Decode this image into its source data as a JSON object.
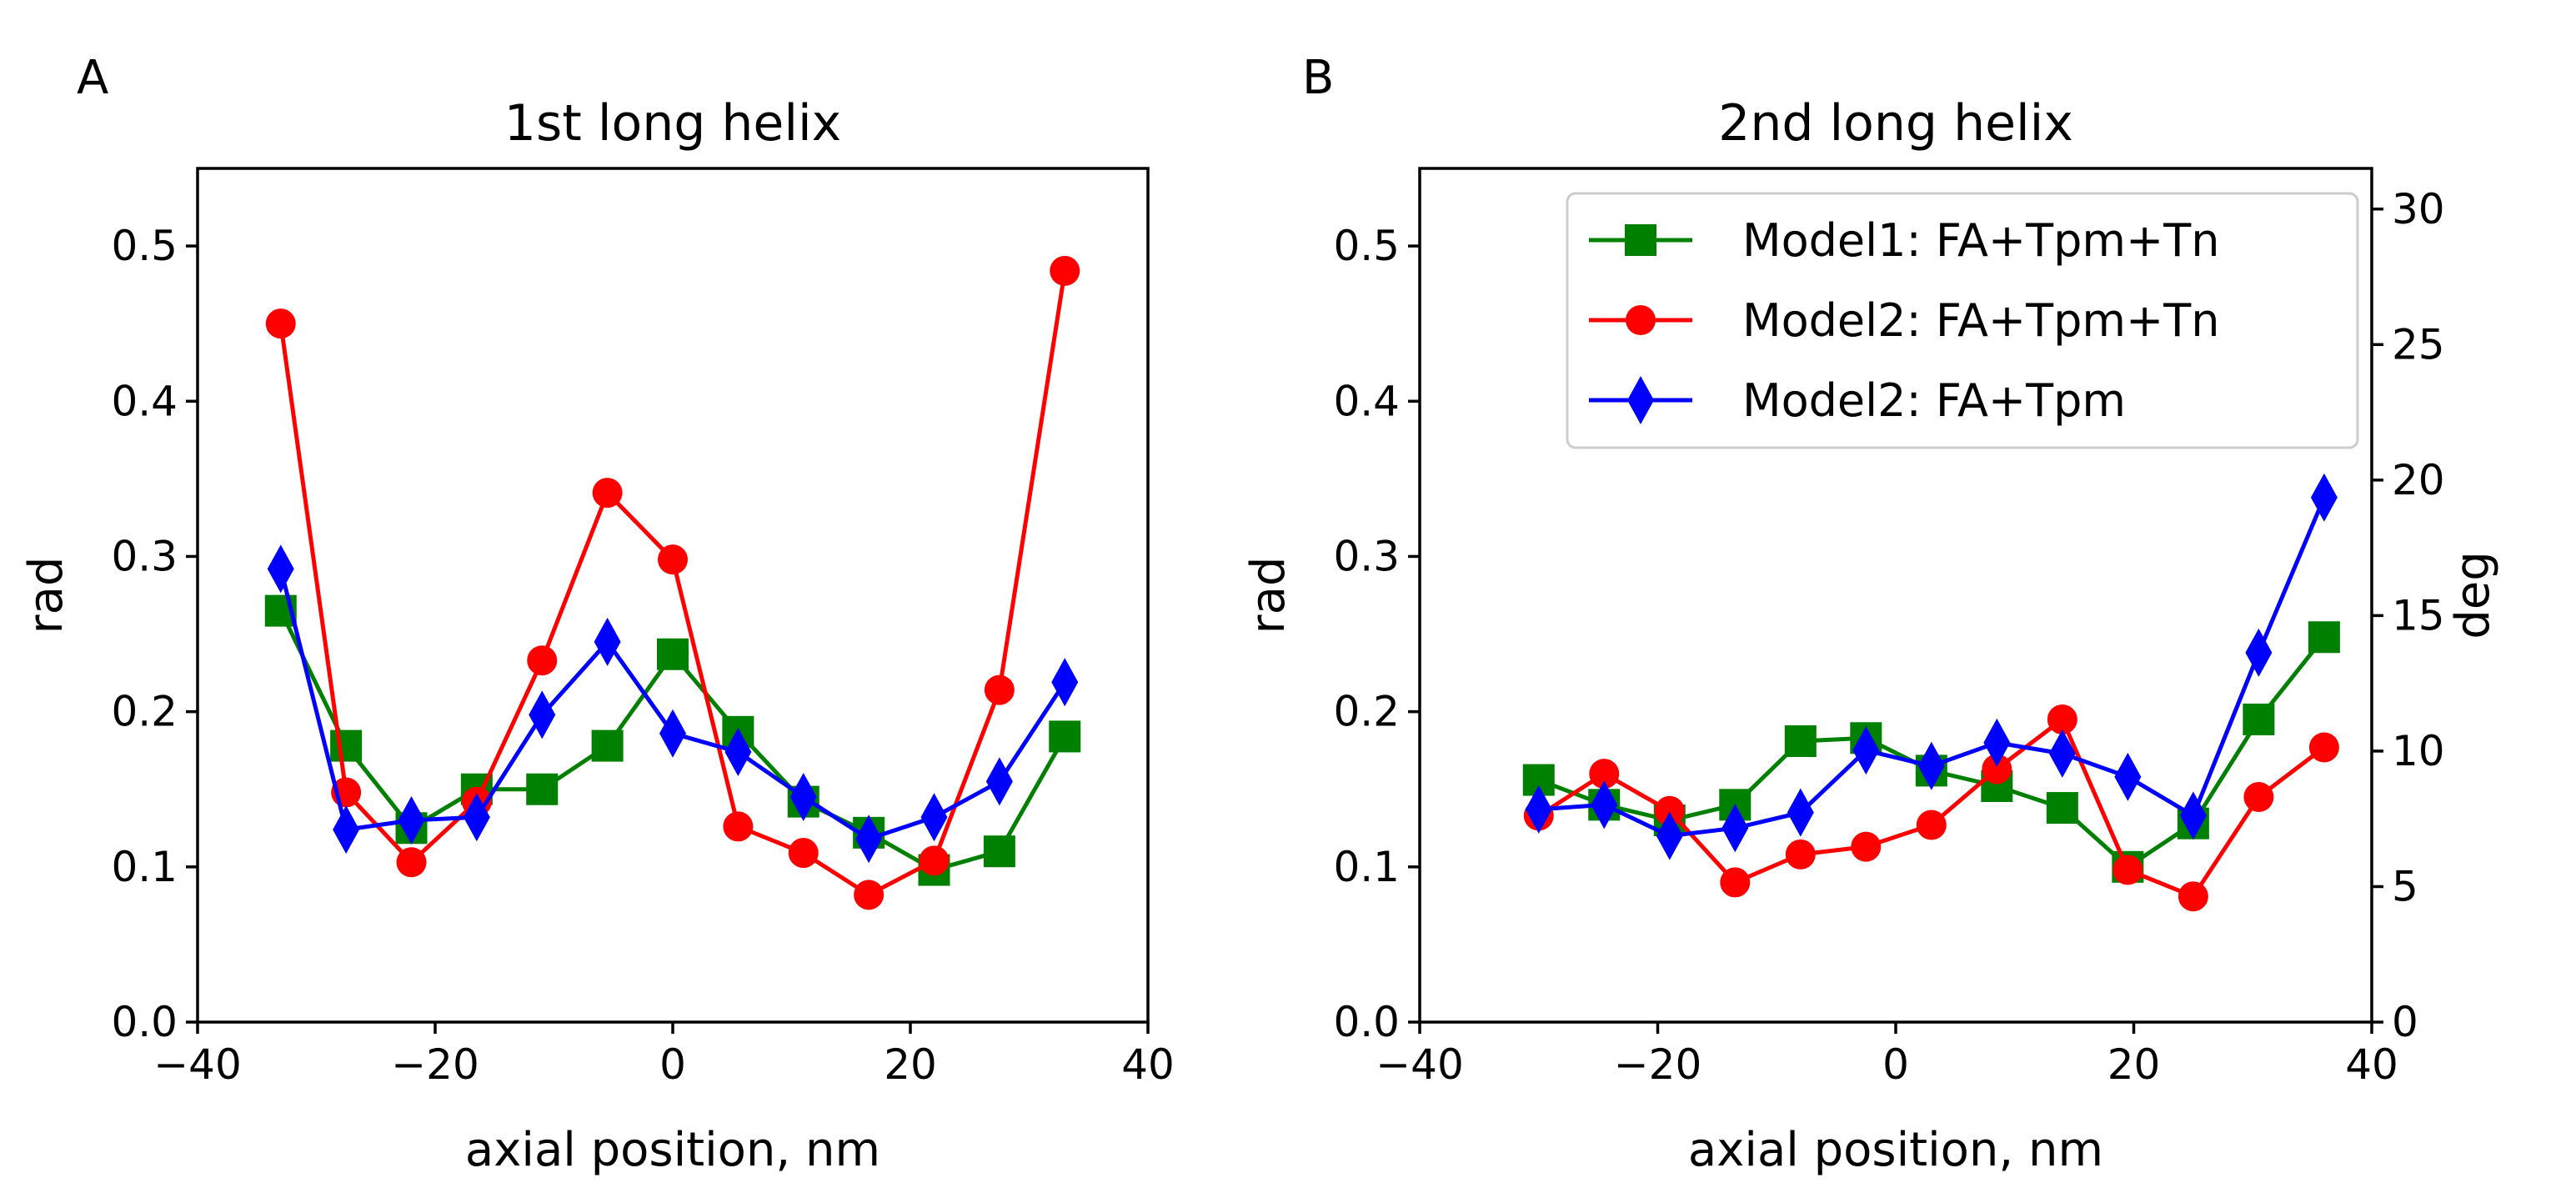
{
  "chart_data": [
    {
      "type": "line",
      "panel_label": "A",
      "title": "1st long helix",
      "xlabel": "axial position, nm",
      "ylabel": "rad",
      "xlim": [
        -40,
        40
      ],
      "ylim": [
        0.0,
        0.55
      ],
      "xticks": [
        -40,
        -20,
        0,
        20,
        40
      ],
      "xtick_labels": [
        "−40",
        "−20",
        "0",
        "20",
        "40"
      ],
      "yticks": [
        0.0,
        0.1,
        0.2,
        0.3,
        0.4,
        0.5
      ],
      "ytick_labels": [
        "0.0",
        "0.1",
        "0.2",
        "0.3",
        "0.4",
        "0.5"
      ],
      "grid": false,
      "series": [
        {
          "name": "Model1: FA+Tpm+Tn",
          "color": "#008000",
          "marker": "square",
          "x": [
            -33,
            -27.5,
            -22,
            -16.5,
            -11,
            -5.5,
            0,
            5.5,
            11,
            16.5,
            22,
            27.5,
            33
          ],
          "y": [
            0.265,
            0.178,
            0.125,
            0.15,
            0.15,
            0.178,
            0.237,
            0.187,
            0.142,
            0.122,
            0.098,
            0.11,
            0.184
          ]
        },
        {
          "name": "Model2: FA+Tpm+Tn",
          "color": "#ff0000",
          "marker": "circle",
          "x": [
            -33,
            -27.5,
            -22,
            -16.5,
            -11,
            -5.5,
            0,
            5.5,
            11,
            16.5,
            22,
            27.5,
            33
          ],
          "y": [
            0.45,
            0.148,
            0.103,
            0.142,
            0.233,
            0.341,
            0.298,
            0.126,
            0.109,
            0.082,
            0.104,
            0.214,
            0.484
          ]
        },
        {
          "name": "Model2: FA+Tpm",
          "color": "#0000ff",
          "marker": "diamond",
          "x": [
            -33,
            -27.5,
            -22,
            -16.5,
            -11,
            -5.5,
            0,
            5.5,
            11,
            16.5,
            22,
            27.5,
            33
          ],
          "y": [
            0.292,
            0.124,
            0.13,
            0.132,
            0.198,
            0.245,
            0.186,
            0.174,
            0.145,
            0.118,
            0.132,
            0.155,
            0.219
          ]
        }
      ]
    },
    {
      "type": "line",
      "panel_label": "B",
      "title": "2nd long helix",
      "xlabel": "axial position, nm",
      "ylabel": "rad",
      "y2label": "deg",
      "xlim": [
        -40,
        40
      ],
      "ylim": [
        0.0,
        0.55
      ],
      "y2lim": [
        0,
        31.5
      ],
      "xticks": [
        -40,
        -20,
        0,
        20,
        40
      ],
      "xtick_labels": [
        "−40",
        "−20",
        "0",
        "20",
        "40"
      ],
      "yticks": [
        0.0,
        0.1,
        0.2,
        0.3,
        0.4,
        0.5
      ],
      "ytick_labels": [
        "0.0",
        "0.1",
        "0.2",
        "0.3",
        "0.4",
        "0.5"
      ],
      "y2ticks": [
        0,
        5,
        10,
        15,
        20,
        25,
        30
      ],
      "y2tick_labels": [
        "0",
        "5",
        "10",
        "15",
        "20",
        "25",
        "30"
      ],
      "grid": false,
      "legend_position": "top-right",
      "series": [
        {
          "name": "Model1: FA+Tpm+Tn",
          "color": "#008000",
          "marker": "square",
          "x": [
            -30,
            -24.5,
            -19,
            -13.5,
            -8,
            -2.5,
            3,
            8.5,
            14,
            19.5,
            25,
            30.5,
            36
          ],
          "y": [
            0.156,
            0.14,
            0.13,
            0.14,
            0.181,
            0.183,
            0.162,
            0.152,
            0.138,
            0.1,
            0.128,
            0.195,
            0.248
          ]
        },
        {
          "name": "Model2: FA+Tpm+Tn",
          "color": "#ff0000",
          "marker": "circle",
          "x": [
            -30,
            -24.5,
            -19,
            -13.5,
            -8,
            -2.5,
            3,
            8.5,
            14,
            19.5,
            25,
            30.5,
            36
          ],
          "y": [
            0.133,
            0.16,
            0.136,
            0.09,
            0.108,
            0.113,
            0.127,
            0.163,
            0.195,
            0.098,
            0.081,
            0.145,
            0.177
          ]
        },
        {
          "name": "Model2: FA+Tpm",
          "color": "#0000ff",
          "marker": "diamond",
          "x": [
            -30,
            -24.5,
            -19,
            -13.5,
            -8,
            -2.5,
            3,
            8.5,
            14,
            19.5,
            25,
            30.5,
            36
          ],
          "y": [
            0.137,
            0.14,
            0.12,
            0.125,
            0.135,
            0.175,
            0.165,
            0.18,
            0.173,
            0.158,
            0.133,
            0.238,
            0.338
          ]
        }
      ]
    }
  ]
}
